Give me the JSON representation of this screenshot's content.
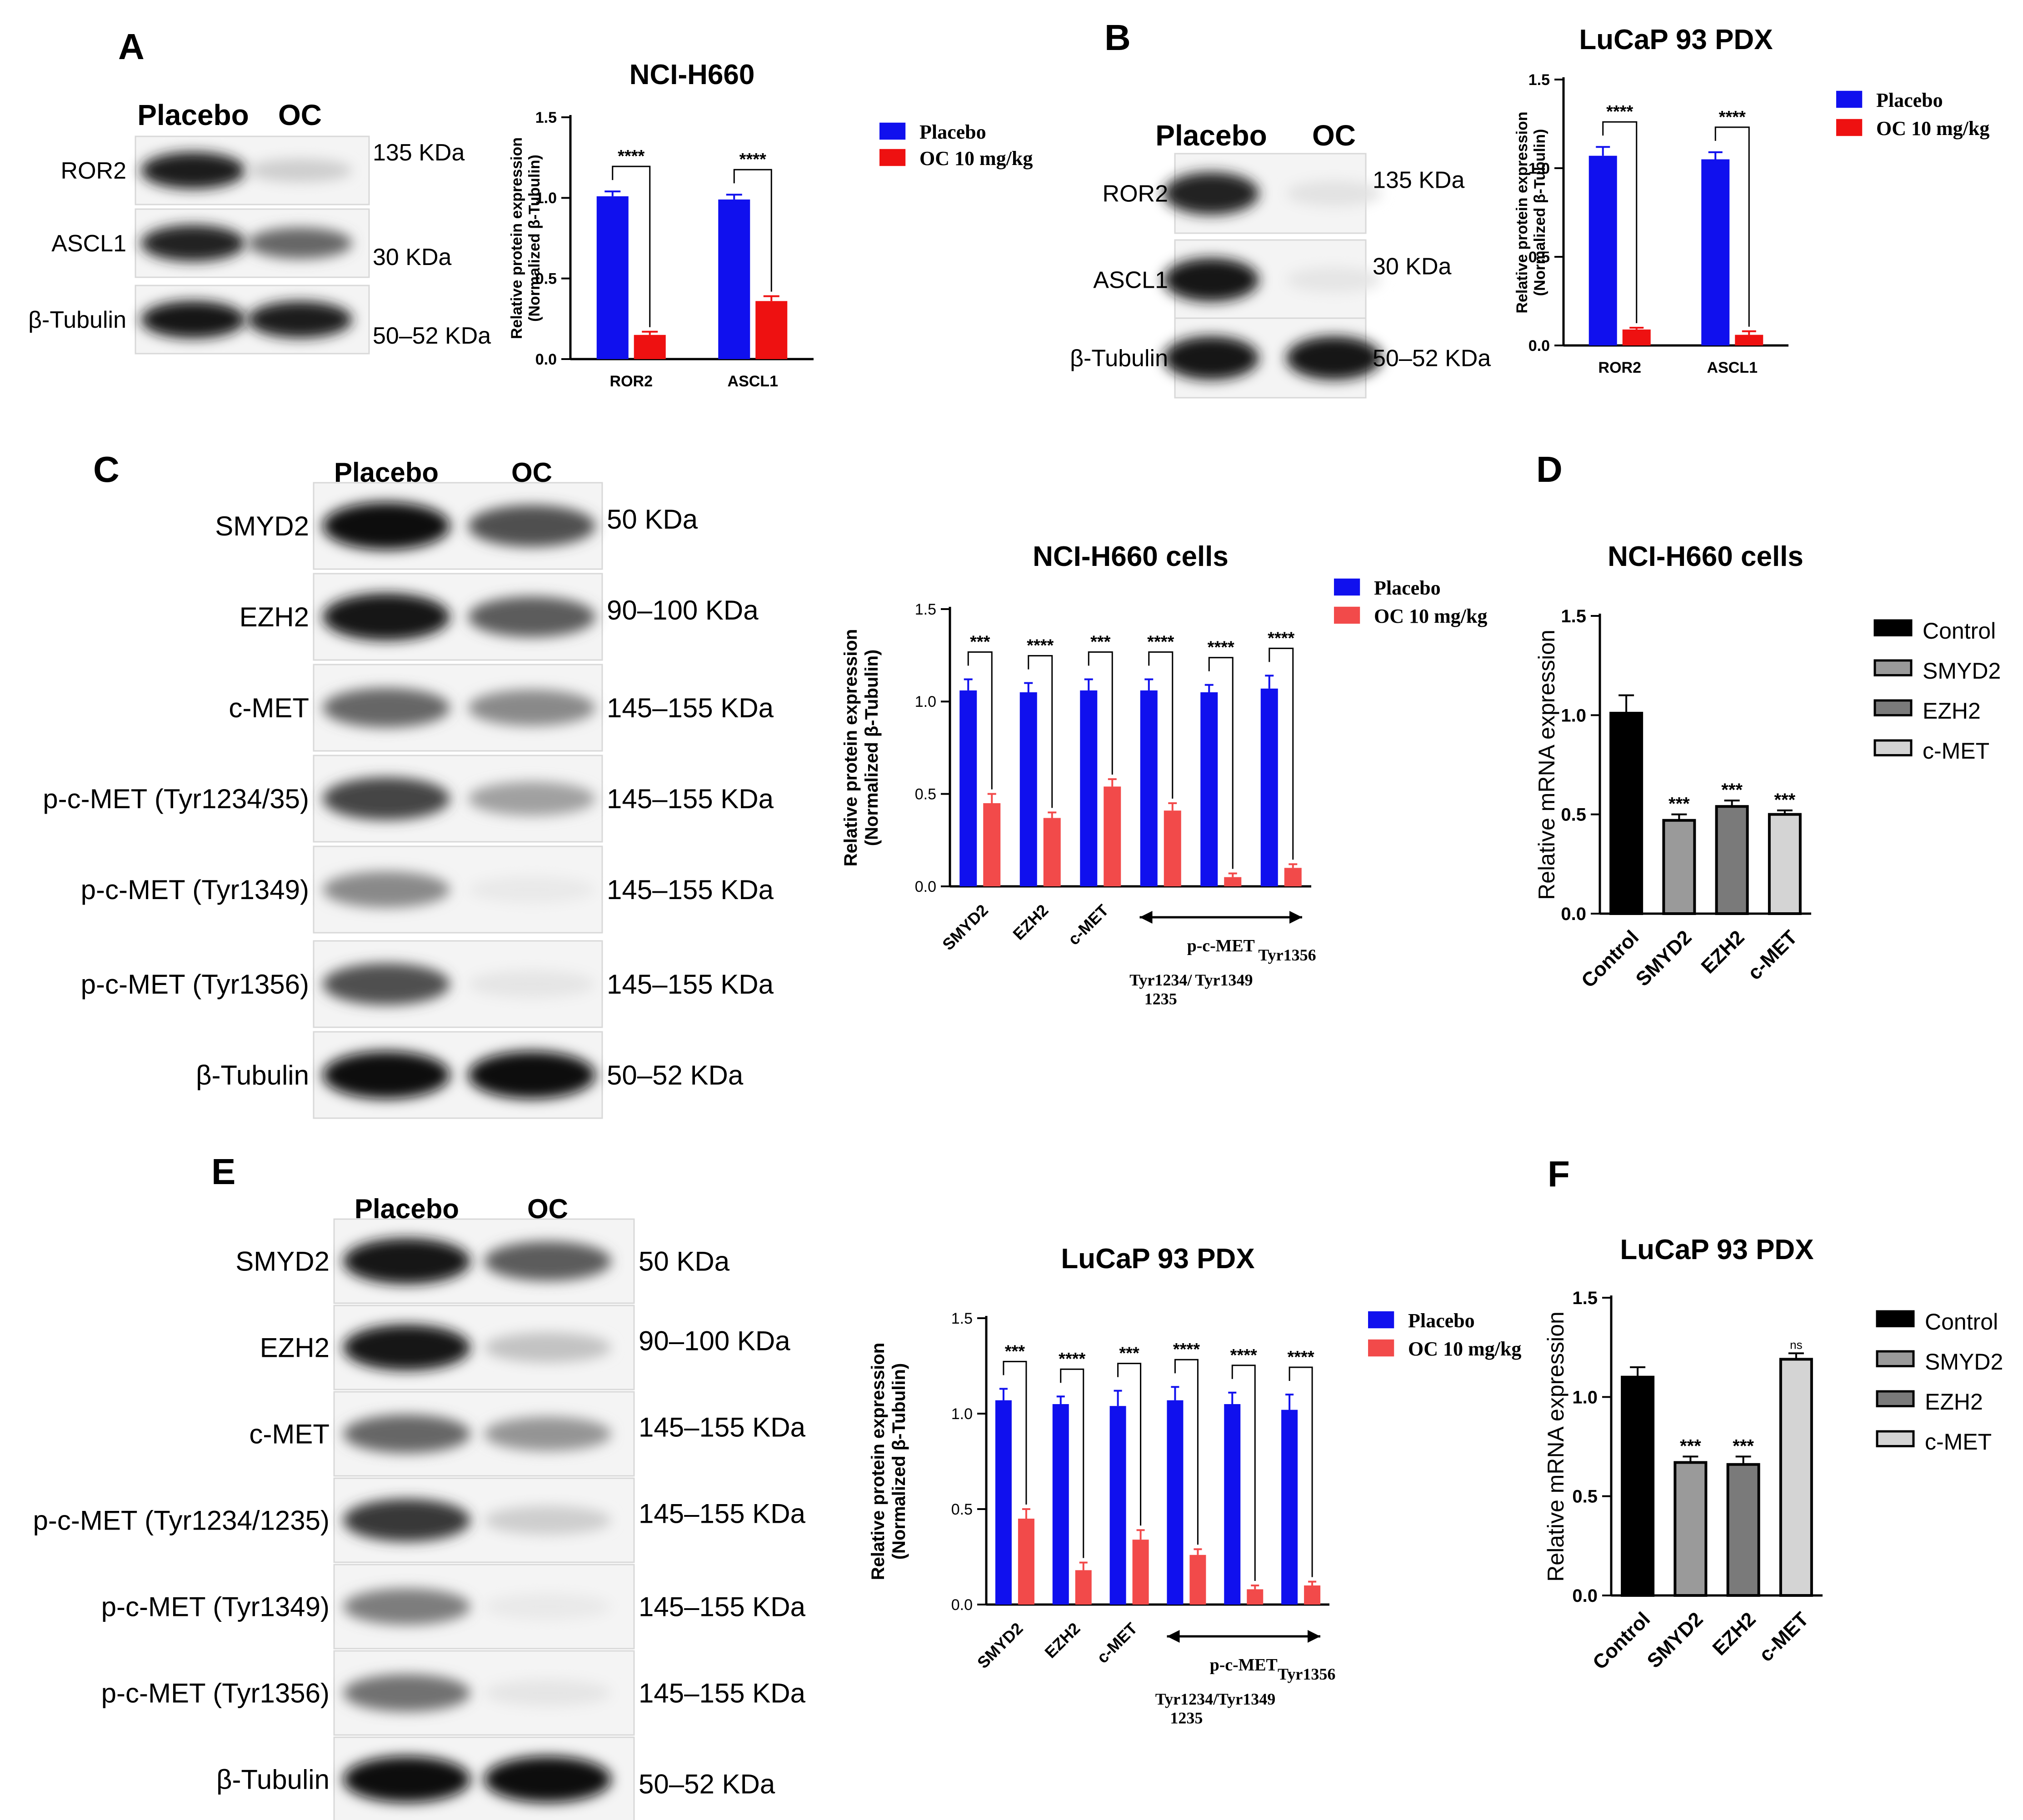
{
  "colors": {
    "placebo": "#1010ee",
    "oc": "#ee1111",
    "oc_light": "#f24a4a",
    "control": "#000000",
    "smyd2": "#9a9a9a",
    "ezh2": "#7a7a7a",
    "cmet": "#d4d4d4"
  },
  "panels": {
    "A": {
      "letter": "A",
      "blot": {
        "lanes": [
          "Placebo",
          "OC"
        ],
        "rows": [
          {
            "label": "ROR2",
            "size": "135 KDa",
            "placebo": 0.92,
            "oc": 0.15
          },
          {
            "label": "ASCL1",
            "size": "30 KDa",
            "placebo": 0.9,
            "oc": 0.6
          },
          {
            "label": "β-Tubulin",
            "size": "50–52 KDa",
            "placebo": 0.95,
            "oc": 0.92
          }
        ]
      }
    },
    "B": {
      "letter": "B",
      "blot": {
        "lanes": [
          "Placebo",
          "OC"
        ],
        "rows": [
          {
            "label": "ROR2",
            "size": "135 KDa",
            "placebo": 0.9,
            "oc": 0.06
          },
          {
            "label": "ASCL1",
            "size": "30 KDa",
            "placebo": 0.95,
            "oc": 0.05
          },
          {
            "label": "β-Tubulin",
            "size": "50–52 KDa",
            "placebo": 0.95,
            "oc": 0.95
          }
        ]
      }
    },
    "C": {
      "letter": "C",
      "blot": {
        "lanes": [
          "Placebo",
          "OC"
        ],
        "rows": [
          {
            "label": "SMYD2",
            "size": "50 KDa",
            "placebo": 0.97,
            "oc": 0.7
          },
          {
            "label": "EZH2",
            "size": "90–100 KDa",
            "placebo": 0.95,
            "oc": 0.65
          },
          {
            "label": "c-MET",
            "size": "145–155 KDa",
            "placebo": 0.6,
            "oc": 0.45
          },
          {
            "label": "p-c-MET (Tyr1234/35)",
            "size": "145–155 KDa",
            "placebo": 0.75,
            "oc": 0.35
          },
          {
            "label": "p-c-MET (Tyr1349)",
            "size": "145–155 KDa",
            "placebo": 0.45,
            "oc": 0.03
          },
          {
            "label": "p-c-MET (Tyr1356)",
            "size": "145–155 KDa",
            "placebo": 0.7,
            "oc": 0.05
          },
          {
            "label": "β-Tubulin",
            "size": "50–52 KDa",
            "placebo": 0.97,
            "oc": 0.97
          }
        ]
      }
    },
    "D": {
      "letter": "D"
    },
    "E": {
      "letter": "E",
      "blot": {
        "lanes": [
          "Placebo",
          "OC"
        ],
        "rows": [
          {
            "label": "SMYD2",
            "size": "50 KDa",
            "placebo": 0.95,
            "oc": 0.65
          },
          {
            "label": "EZH2",
            "size": "90–100 KDa",
            "placebo": 0.95,
            "oc": 0.2
          },
          {
            "label": "c-MET",
            "size": "145–155 KDa",
            "placebo": 0.6,
            "oc": 0.4
          },
          {
            "label": "p-c-MET (Tyr1234/1235)",
            "size": "145–155 KDa",
            "placebo": 0.8,
            "oc": 0.15
          },
          {
            "label": "p-c-MET (Tyr1349)",
            "size": "145–155 KDa",
            "placebo": 0.5,
            "oc": 0.03
          },
          {
            "label": "p-c-MET (Tyr1356)",
            "size": "145–155 KDa",
            "placebo": 0.55,
            "oc": 0.05
          },
          {
            "label": "β-Tubulin",
            "size": "50–52 KDa",
            "placebo": 0.97,
            "oc": 0.97
          }
        ]
      }
    },
    "F": {
      "letter": "F"
    }
  },
  "chart_data": [
    {
      "panel": "A",
      "type": "bar",
      "title": "NCI-H660",
      "ylabel": "Relative protein expression\n(Normalized β-Tubulin)",
      "ylim": [
        0,
        1.5
      ],
      "yticks": [
        "0.0",
        "0.5",
        "1.0",
        "1.5"
      ],
      "categories": [
        "ROR2",
        "ASCL1"
      ],
      "series": [
        {
          "name": "Placebo",
          "values": [
            1.01,
            0.99
          ],
          "errors": [
            0.03,
            0.03
          ]
        },
        {
          "name": "OC 10 mg/kg",
          "values": [
            0.15,
            0.36
          ],
          "errors": [
            0.02,
            0.03
          ]
        }
      ],
      "significance": [
        "****",
        "****"
      ],
      "legend": "right"
    },
    {
      "panel": "B",
      "type": "bar",
      "title": "LuCaP 93 PDX",
      "ylabel": "Relative protein expression\n(Normalized β-Tubulin)",
      "ylim": [
        0,
        1.5
      ],
      "yticks": [
        "0.0",
        "0.5",
        "1.0",
        "1.5"
      ],
      "categories": [
        "ROR2",
        "ASCL1"
      ],
      "series": [
        {
          "name": "Placebo",
          "values": [
            1.07,
            1.05
          ],
          "errors": [
            0.05,
            0.04
          ]
        },
        {
          "name": "OC 10 mg/kg",
          "values": [
            0.09,
            0.06
          ],
          "errors": [
            0.01,
            0.02
          ]
        }
      ],
      "significance": [
        "****",
        "****"
      ],
      "legend": "right"
    },
    {
      "panel": "C",
      "type": "bar",
      "title": "NCI-H660 cells",
      "ylabel": "Relative protein expression\n(Normalized β-Tubulin)",
      "ylim": [
        0,
        1.5
      ],
      "yticks": [
        "0.0",
        "0.5",
        "1.0",
        "1.5"
      ],
      "categories": [
        "SMYD2",
        "EZH2",
        "c-MET",
        "p-c-MET Tyr1234/1235",
        "p-c-MET Tyr1349",
        "p-c-MET Tyr1356"
      ],
      "tick_labels": [
        "SMYD2",
        "EZH2",
        "c-MET"
      ],
      "group_label": "p-c-MET",
      "sub_labels": [
        "Tyr1234/\n1235",
        "Tyr1349",
        "Tyr1356"
      ],
      "series": [
        {
          "name": "Placebo",
          "values": [
            1.06,
            1.05,
            1.06,
            1.06,
            1.05,
            1.07
          ],
          "errors": [
            0.06,
            0.05,
            0.06,
            0.06,
            0.04,
            0.07
          ]
        },
        {
          "name": "OC 10 mg/kg",
          "values": [
            0.45,
            0.37,
            0.54,
            0.41,
            0.05,
            0.1
          ],
          "errors": [
            0.05,
            0.03,
            0.04,
            0.04,
            0.02,
            0.02
          ]
        }
      ],
      "significance": [
        "***",
        "****",
        "***",
        "****",
        "****",
        "****"
      ],
      "legend": "right"
    },
    {
      "panel": "D",
      "type": "bar",
      "title": "NCI-H660 cells",
      "ylabel": "Relative mRNA expression",
      "ylim": [
        0,
        1.5
      ],
      "yticks": [
        "0.0",
        "0.5",
        "1.0",
        "1.5"
      ],
      "categories": [
        "Control",
        "SMYD2",
        "EZH2",
        "c-MET"
      ],
      "values": [
        1.01,
        0.47,
        0.54,
        0.5
      ],
      "errors": [
        0.09,
        0.03,
        0.03,
        0.02
      ],
      "significance": [
        "",
        "***",
        "***",
        "***"
      ],
      "legend_entries": [
        "Control",
        "SMYD2",
        "EZH2",
        "c-MET"
      ],
      "legend": "right"
    },
    {
      "panel": "E",
      "type": "bar",
      "title": "LuCaP 93 PDX",
      "ylabel": "Relative protein expression\n(Normalized β-Tubulin)",
      "ylim": [
        0,
        1.5
      ],
      "yticks": [
        "0.0",
        "0.5",
        "1.0",
        "1.5"
      ],
      "categories": [
        "SMYD2",
        "EZH2",
        "c-MET",
        "p-c-MET Tyr1234/1235",
        "p-c-MET Tyr1349",
        "p-c-MET Tyr1356"
      ],
      "tick_labels": [
        "SMYD2",
        "EZH2",
        "c-MET"
      ],
      "group_label": "p-c-MET",
      "sub_labels": [
        "Tyr1234/\n1235",
        "Tyr1349",
        "Tyr1356"
      ],
      "series": [
        {
          "name": "Placebo",
          "values": [
            1.07,
            1.05,
            1.04,
            1.07,
            1.05,
            1.02
          ],
          "errors": [
            0.06,
            0.04,
            0.08,
            0.07,
            0.06,
            0.08
          ]
        },
        {
          "name": "OC 10 mg/kg",
          "values": [
            0.45,
            0.18,
            0.34,
            0.26,
            0.08,
            0.1
          ],
          "errors": [
            0.05,
            0.04,
            0.05,
            0.03,
            0.02,
            0.02
          ]
        }
      ],
      "significance": [
        "***",
        "****",
        "***",
        "****",
        "****",
        "****"
      ],
      "legend": "right"
    },
    {
      "panel": "F",
      "type": "bar",
      "title": "LuCaP 93 PDX",
      "ylabel": "Relative  mRNA expression",
      "ylim": [
        0,
        1.5
      ],
      "yticks": [
        "0.0",
        "0.5",
        "1.0",
        "1.5"
      ],
      "categories": [
        "Control",
        "SMYD2",
        "EZH2",
        "c-MET"
      ],
      "values": [
        1.1,
        0.67,
        0.66,
        1.19
      ],
      "errors": [
        0.05,
        0.03,
        0.04,
        0.03
      ],
      "significance": [
        "",
        "***",
        "***",
        "ns"
      ],
      "legend_entries": [
        "Control",
        "SMYD2",
        "EZH2",
        "c-MET"
      ],
      "legend": "right"
    }
  ]
}
